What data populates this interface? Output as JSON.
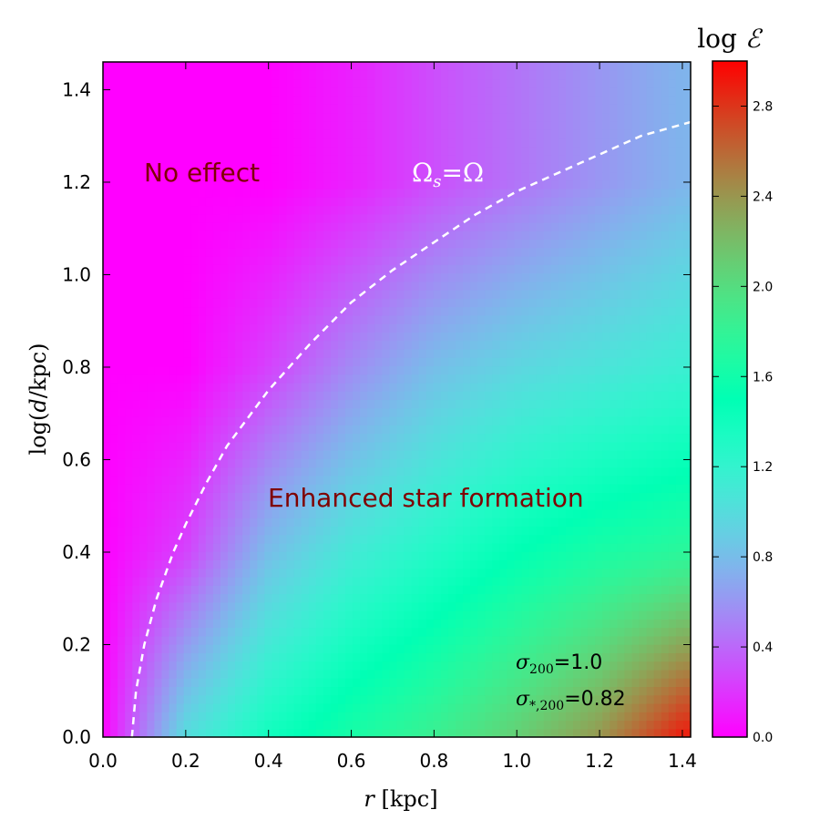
{
  "chart_data": {
    "type": "heatmap",
    "title": "",
    "xlabel": "r [kpc]",
    "ylabel": "log(d/kpc)",
    "xlim": [
      0.0,
      1.42
    ],
    "ylim": [
      0.0,
      1.46
    ],
    "xticks": [
      0.0,
      0.2,
      0.4,
      0.6,
      0.8,
      1.0,
      1.2,
      1.4
    ],
    "xtick_labels": [
      "0.0",
      "0.2",
      "0.4",
      "0.6",
      "0.8",
      "1.0",
      "1.2",
      "1.4"
    ],
    "yticks": [
      0.0,
      0.2,
      0.4,
      0.6,
      0.8,
      1.0,
      1.2,
      1.4
    ],
    "ytick_labels": [
      "0.0",
      "0.2",
      "0.4",
      "0.6",
      "0.8",
      "1.0",
      "1.2",
      "1.4"
    ],
    "colorbar": {
      "label": "log ℰ",
      "range": [
        0.0,
        3.0
      ],
      "ticks": [
        0.0,
        0.4,
        0.8,
        1.2,
        1.6,
        2.0,
        2.4,
        2.8
      ],
      "tick_labels": [
        "0.0",
        "0.4",
        "0.8",
        "1.2",
        "1.6",
        "2.0",
        "2.4",
        "2.8"
      ],
      "colormap": "rainbow"
    },
    "grid": false,
    "field_samples": {
      "r": [
        0.0,
        0.2,
        0.4,
        0.6,
        0.8,
        1.0,
        1.2,
        1.4
      ],
      "logd": [
        0.0,
        0.4,
        0.8,
        1.2
      ],
      "z": [
        [
          0.0,
          1.0,
          1.4,
          1.65,
          1.85,
          2.1,
          2.4,
          2.9
        ],
        [
          0.0,
          0.25,
          0.8,
          1.1,
          1.3,
          1.5,
          1.65,
          1.75
        ],
        [
          0.0,
          0.0,
          0.25,
          0.55,
          0.8,
          0.95,
          1.05,
          1.15
        ],
        [
          0.0,
          0.0,
          0.0,
          0.12,
          0.3,
          0.45,
          0.6,
          0.75
        ]
      ]
    },
    "dashed_curve": {
      "label": "Ω_s = Ω",
      "color": "#ffffff",
      "r": [
        0.07,
        0.08,
        0.1,
        0.13,
        0.17,
        0.2,
        0.25,
        0.3,
        0.4,
        0.5,
        0.6,
        0.7,
        0.8,
        0.9,
        1.0,
        1.1,
        1.2,
        1.3,
        1.42
      ],
      "logd": [
        0.0,
        0.1,
        0.2,
        0.3,
        0.4,
        0.46,
        0.55,
        0.63,
        0.75,
        0.85,
        0.94,
        1.01,
        1.07,
        1.13,
        1.18,
        1.22,
        1.26,
        1.3,
        1.33
      ]
    },
    "annotations": [
      {
        "text": "No effect",
        "x": 0.1,
        "y": 1.21
      },
      {
        "text": "Enhanced star formation",
        "x": 0.4,
        "y": 0.51
      },
      {
        "text": "Ωs = Ω",
        "x": 0.86,
        "y": 1.21
      },
      {
        "text": "σ200 = 1.0",
        "x": 1.0,
        "y": 0.15
      },
      {
        "text": "σ*,200 = 0.82",
        "x": 1.0,
        "y": 0.07
      }
    ]
  },
  "labels": {
    "no_effect": "No effect",
    "enhanced": "Enhanced star formation",
    "omega_s": "Ω",
    "omega_sub": "s",
    "omega_eq": "=Ω",
    "sigma200_sym": "σ",
    "sigma200_sub": "200",
    "sigma200_val": "=1.0",
    "sigmastar_sym": "σ",
    "sigmastar_sub": "*,200",
    "sigmastar_val": "=0.82",
    "xlabel_r": "r",
    "xlabel_unit": " [kpc]",
    "ylabel_pre": "log(",
    "ylabel_d": "d",
    "ylabel_post": "/kpc)",
    "cb_log": "log ",
    "cb_E": "ℰ"
  }
}
